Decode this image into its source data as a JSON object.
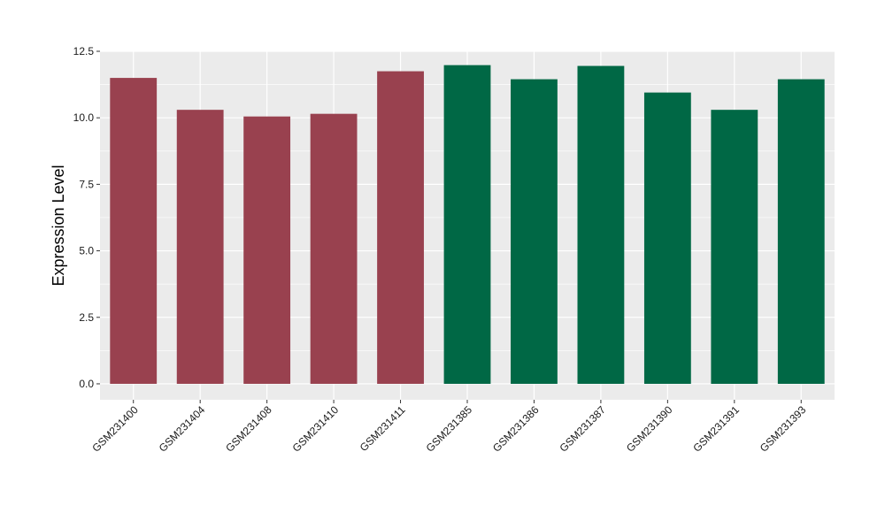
{
  "chart_data": {
    "type": "bar",
    "title": "",
    "xlabel": "",
    "ylabel": "Expression Level",
    "ylim": [
      -0.6,
      12.5
    ],
    "yticks": [
      0.0,
      2.5,
      5.0,
      7.5,
      10.0,
      12.5
    ],
    "ytick_labels": [
      "0.0",
      "2.5",
      "5.0",
      "7.5",
      "10.0",
      "12.5"
    ],
    "grid": true,
    "legend": "none",
    "categories": [
      "GSM231400",
      "GSM231404",
      "GSM231408",
      "GSM231410",
      "GSM231411",
      "GSM231385",
      "GSM231386",
      "GSM231387",
      "GSM231390",
      "GSM231391",
      "GSM231393"
    ],
    "values": [
      11.5,
      10.3,
      10.05,
      10.15,
      11.75,
      11.98,
      11.45,
      11.95,
      10.95,
      10.3,
      11.45
    ],
    "bar_colors": [
      "#99414f",
      "#99414f",
      "#99414f",
      "#99414f",
      "#99414f",
      "#006845",
      "#006845",
      "#006845",
      "#006845",
      "#006845",
      "#006845"
    ],
    "panel_background": "#ebebeb",
    "grid_color": "#ffffff"
  }
}
